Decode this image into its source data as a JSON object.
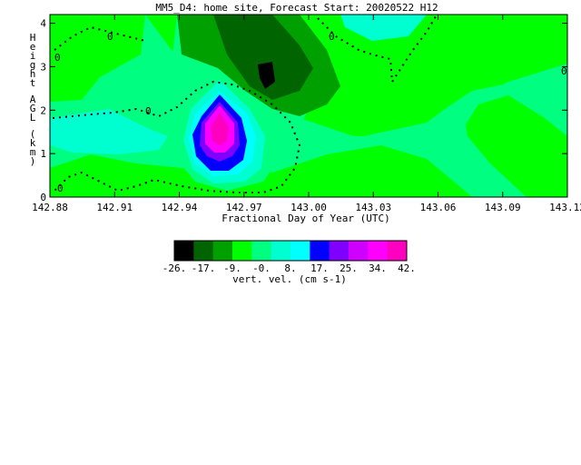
{
  "chart_data": {
    "type": "heatmap",
    "title": "MM5_D4: home site,  Forecast Start: 20020522 H12",
    "xlabel": "Fractional Day of Year (UTC)",
    "ylabel": "Height AGL (km)",
    "x_ticks": [
      "142.88",
      "142.91",
      "142.94",
      "142.97",
      "143.00",
      "143.03",
      "143.06",
      "143.09",
      "143.12"
    ],
    "y_ticks": [
      "0",
      "1",
      "2",
      "3",
      "4"
    ],
    "xlim": [
      142.88,
      143.12
    ],
    "ylim": [
      0,
      4.2
    ],
    "contour_label": "0",
    "colorbar": {
      "label": "vert. vel. (cm s-1)",
      "tick_labels": [
        "-26.",
        "-17.",
        "-9.",
        "-0.",
        "8.",
        "17.",
        "25.",
        "34.",
        "42."
      ],
      "colors": [
        "#000000",
        "#006400",
        "#00a000",
        "#00ff00",
        "#00ff80",
        "#00ffd0",
        "#00ffff",
        "#0000ff",
        "#8000ff",
        "#d000ff",
        "#ff00ff",
        "#ff00c0"
      ]
    },
    "colors": {
      "background_field": "#00ff80",
      "region_green": "#00ff00",
      "region_light_green": "#00ff80",
      "region_cyan": "#00ffd0",
      "region_mid_green": "#00a000",
      "region_dark_green": "#006400",
      "region_black": "#000000",
      "region_blue": "#0000ff",
      "region_magenta": "#ff00c0"
    },
    "grid": false
  }
}
